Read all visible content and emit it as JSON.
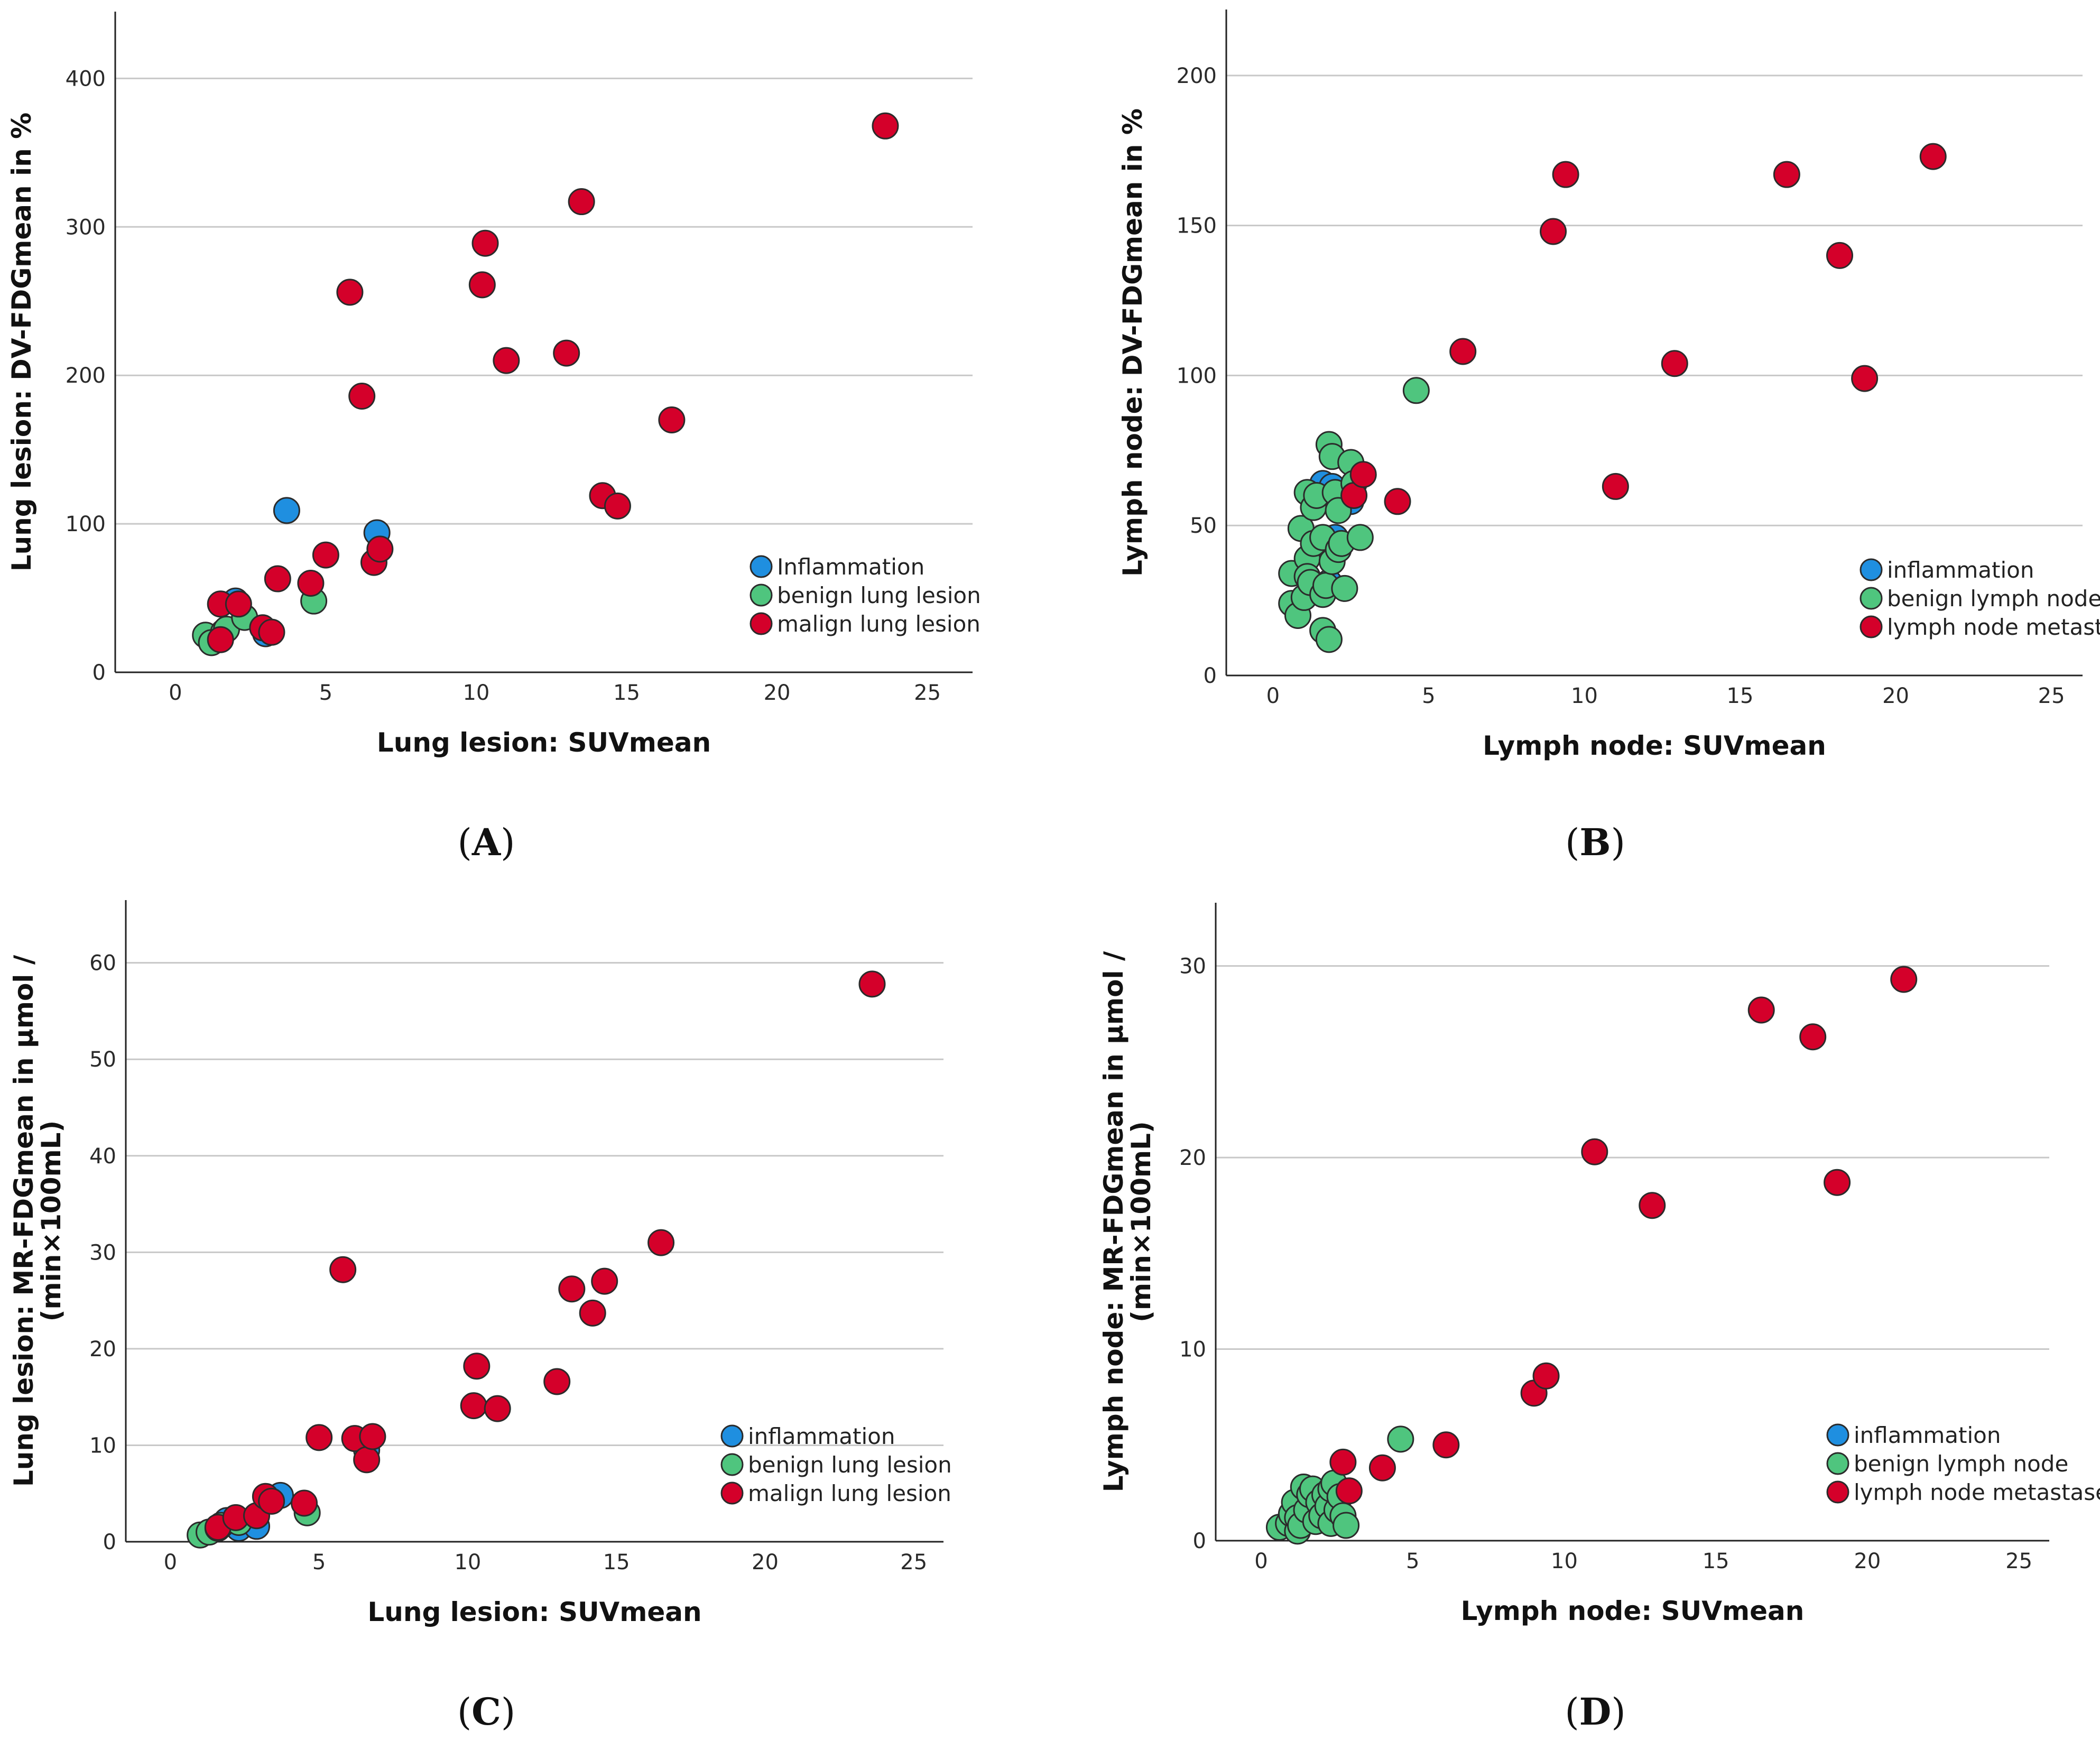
{
  "colors": {
    "inflammation": "#1f8fe0",
    "benign": "#4fc57e",
    "malign": "#d4002a",
    "gridline": "#c8c8c8",
    "marker_stroke": "#2b2b2b"
  },
  "chart_data": [
    {
      "panel": "A",
      "type": "scatter",
      "xlabel": "Lung lesion: SUVmean",
      "ylabel": [
        "Lung lesion: DV-FDGmean in %"
      ],
      "xlim": [
        -2,
        26.5
      ],
      "ylim": [
        0,
        445
      ],
      "xticks": [
        0,
        5,
        10,
        15,
        20,
        25
      ],
      "yticks": [
        0,
        100,
        200,
        300,
        400
      ],
      "legend_position": "bottom-right",
      "series": [
        {
          "name": "Inflammation",
          "color_key": "inflammation",
          "points": [
            [
              2.0,
              48
            ],
            [
              3.0,
              26
            ],
            [
              3.7,
              109
            ],
            [
              6.7,
              94
            ]
          ]
        },
        {
          "name": "benign lung lesion",
          "color_key": "benign",
          "points": [
            [
              1.0,
              25
            ],
            [
              1.2,
              20
            ],
            [
              1.6,
              27
            ],
            [
              1.7,
              29
            ],
            [
              2.3,
              37
            ],
            [
              4.6,
              48
            ]
          ]
        },
        {
          "name": "malign lung lesion",
          "color_key": "malign",
          "points": [
            [
              1.5,
              46
            ],
            [
              1.5,
              22
            ],
            [
              2.1,
              46
            ],
            [
              2.9,
              30
            ],
            [
              3.2,
              27
            ],
            [
              3.4,
              63
            ],
            [
              4.5,
              60
            ],
            [
              5.0,
              79
            ],
            [
              5.8,
              256
            ],
            [
              6.2,
              186
            ],
            [
              6.6,
              74
            ],
            [
              6.8,
              83
            ],
            [
              10.2,
              261
            ],
            [
              10.3,
              289
            ],
            [
              11.0,
              210
            ],
            [
              13.0,
              215
            ],
            [
              13.5,
              317
            ],
            [
              14.2,
              119
            ],
            [
              14.7,
              112
            ],
            [
              16.5,
              170
            ],
            [
              23.6,
              368
            ]
          ]
        }
      ]
    },
    {
      "panel": "B",
      "type": "scatter",
      "xlabel": "Lymph node: SUVmean",
      "ylabel": [
        "Lymph node: DV-FDGmean in %"
      ],
      "xlim": [
        -1.5,
        26
      ],
      "ylim": [
        0,
        222
      ],
      "xticks": [
        0,
        5,
        10,
        15,
        20,
        25
      ],
      "yticks": [
        0,
        50,
        100,
        150,
        200
      ],
      "legend_position": "bottom-right",
      "series": [
        {
          "name": "inflammation",
          "color_key": "inflammation",
          "points": [
            [
              1.6,
              64
            ],
            [
              1.7,
              45
            ],
            [
              1.8,
              31
            ],
            [
              1.9,
              63
            ],
            [
              2.0,
              46
            ],
            [
              2.3,
              60
            ],
            [
              2.5,
              58
            ]
          ]
        },
        {
          "name": "benign lymph node",
          "color_key": "benign",
          "points": [
            [
              0.6,
              34
            ],
            [
              0.6,
              24
            ],
            [
              0.8,
              20
            ],
            [
              0.9,
              49
            ],
            [
              1.0,
              26
            ],
            [
              1.1,
              39
            ],
            [
              1.1,
              33
            ],
            [
              1.1,
              61
            ],
            [
              1.2,
              31
            ],
            [
              1.3,
              56
            ],
            [
              1.3,
              44
            ],
            [
              1.4,
              60
            ],
            [
              1.6,
              46
            ],
            [
              1.6,
              27
            ],
            [
              1.6,
              15
            ],
            [
              1.7,
              30
            ],
            [
              1.8,
              12
            ],
            [
              1.8,
              77
            ],
            [
              1.9,
              73
            ],
            [
              1.9,
              38
            ],
            [
              2.0,
              61
            ],
            [
              2.1,
              55
            ],
            [
              2.1,
              42
            ],
            [
              2.2,
              44
            ],
            [
              2.3,
              29
            ],
            [
              2.5,
              71
            ],
            [
              2.6,
              64
            ],
            [
              2.8,
              46
            ],
            [
              4.6,
              95
            ]
          ]
        },
        {
          "name": "lymph node metastases",
          "color_key": "malign",
          "points": [
            [
              2.6,
              60
            ],
            [
              2.9,
              67
            ],
            [
              4.0,
              58
            ],
            [
              6.1,
              108
            ],
            [
              9.0,
              148
            ],
            [
              9.4,
              167
            ],
            [
              11.0,
              63
            ],
            [
              12.9,
              104
            ],
            [
              16.5,
              167
            ],
            [
              18.2,
              140
            ],
            [
              19.0,
              99
            ],
            [
              21.2,
              173
            ]
          ]
        }
      ]
    },
    {
      "panel": "C",
      "type": "scatter",
      "xlabel": "Lung lesion: SUVmean",
      "ylabel": [
        "Lung lesion: MR-FDGmean in μmol /",
        "(min×100mL)"
      ],
      "xlim": [
        -1.5,
        26
      ],
      "ylim": [
        0,
        66.5
      ],
      "xticks": [
        0,
        5,
        10,
        15,
        20,
        25
      ],
      "yticks": [
        0,
        10,
        20,
        30,
        40,
        50,
        60
      ],
      "legend_position": "bottom-right",
      "series": [
        {
          "name": "inflammation",
          "color_key": "inflammation",
          "points": [
            [
              1.9,
              2.2
            ],
            [
              2.3,
              1.4
            ],
            [
              2.9,
              1.6
            ],
            [
              3.7,
              4.8
            ],
            [
              6.6,
              9.5
            ]
          ]
        },
        {
          "name": "benign lung lesion",
          "color_key": "benign",
          "points": [
            [
              1.0,
              0.7
            ],
            [
              1.3,
              1.0
            ],
            [
              1.6,
              1.4
            ],
            [
              1.7,
              1.7
            ],
            [
              2.3,
              2.0
            ],
            [
              4.6,
              3.0
            ]
          ]
        },
        {
          "name": "malign lung lesion",
          "color_key": "malign",
          "points": [
            [
              1.6,
              1.5
            ],
            [
              2.2,
              2.5
            ],
            [
              2.9,
              2.7
            ],
            [
              3.2,
              4.7
            ],
            [
              3.4,
              4.2
            ],
            [
              4.5,
              4.0
            ],
            [
              5.0,
              10.8
            ],
            [
              5.8,
              28.2
            ],
            [
              6.2,
              10.7
            ],
            [
              6.6,
              8.5
            ],
            [
              6.8,
              10.9
            ],
            [
              10.2,
              14.1
            ],
            [
              10.3,
              18.2
            ],
            [
              11.0,
              13.8
            ],
            [
              13.0,
              16.6
            ],
            [
              13.5,
              26.2
            ],
            [
              14.2,
              23.7
            ],
            [
              14.6,
              27.0
            ],
            [
              16.5,
              31.0
            ],
            [
              23.6,
              57.8
            ]
          ]
        }
      ]
    },
    {
      "panel": "D",
      "type": "scatter",
      "xlabel": "Lymph node: SUVmean",
      "ylabel": [
        "Lymph node: MR-FDGmean in μmol /",
        "(min×100mL)"
      ],
      "xlim": [
        -1.5,
        26
      ],
      "ylim": [
        0,
        33.3
      ],
      "xticks": [
        0,
        5,
        10,
        15,
        20,
        25
      ],
      "yticks": [
        0,
        10,
        20,
        30
      ],
      "legend_position": "bottom-right",
      "series": [
        {
          "name": "inflammation",
          "color_key": "inflammation",
          "points": [
            [
              1.0,
              0.9
            ],
            [
              1.2,
              1.0
            ],
            [
              1.5,
              1.2
            ],
            [
              1.7,
              1.3
            ],
            [
              2.0,
              1.6
            ],
            [
              2.3,
              1.1
            ],
            [
              2.5,
              1.4
            ]
          ]
        },
        {
          "name": "benign lymph node",
          "color_key": "benign",
          "points": [
            [
              0.6,
              0.7
            ],
            [
              0.9,
              0.9
            ],
            [
              1.0,
              1.4
            ],
            [
              1.1,
              2.0
            ],
            [
              1.2,
              0.5
            ],
            [
              1.2,
              1.2
            ],
            [
              1.3,
              0.8
            ],
            [
              1.4,
              2.8
            ],
            [
              1.5,
              1.6
            ],
            [
              1.6,
              2.4
            ],
            [
              1.7,
              2.7
            ],
            [
              1.8,
              1.0
            ],
            [
              1.9,
              2.0
            ],
            [
              2.0,
              1.3
            ],
            [
              2.1,
              2.4
            ],
            [
              2.2,
              1.8
            ],
            [
              2.3,
              2.7
            ],
            [
              2.3,
              0.9
            ],
            [
              2.4,
              3.0
            ],
            [
              2.5,
              1.6
            ],
            [
              2.6,
              2.3
            ],
            [
              2.7,
              1.3
            ],
            [
              2.8,
              0.8
            ],
            [
              4.6,
              5.3
            ]
          ]
        },
        {
          "name": "lymph node metastases",
          "color_key": "malign",
          "points": [
            [
              2.7,
              4.1
            ],
            [
              2.9,
              2.6
            ],
            [
              4.0,
              3.8
            ],
            [
              6.1,
              5.0
            ],
            [
              9.0,
              7.7
            ],
            [
              9.4,
              8.6
            ],
            [
              11.0,
              20.3
            ],
            [
              12.9,
              17.5
            ],
            [
              16.5,
              27.7
            ],
            [
              18.2,
              26.3
            ],
            [
              19.0,
              18.7
            ],
            [
              21.2,
              29.3
            ]
          ]
        }
      ]
    }
  ],
  "captions": [
    "A",
    "B",
    "C",
    "D"
  ]
}
